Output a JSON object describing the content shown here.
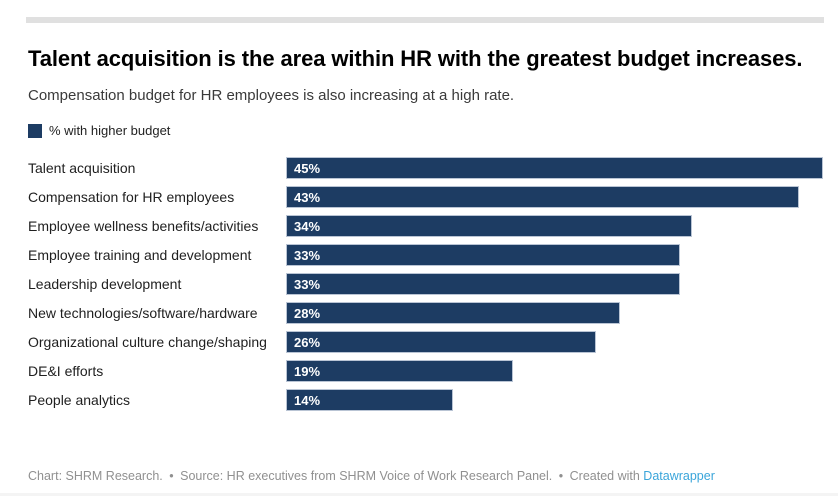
{
  "header": {
    "title": "Talent acquisition is the area within HR with the greatest budget increases.",
    "subtitle": "Compensation budget for HR employees is also increasing at a high rate."
  },
  "legend": {
    "label": "% with higher budget",
    "swatch_color": "#1d3c63"
  },
  "chart_data": {
    "type": "bar",
    "orientation": "horizontal",
    "title": "Talent acquisition is the area within HR with the greatest budget increases.",
    "subtitle": "Compensation budget for HR employees is also increasing at a high rate.",
    "series_name": "% with higher budget",
    "categories": [
      "Talent acquisition",
      "Compensation for HR employees",
      "Employee wellness benefits/activities",
      "Employee training and development",
      "Leadership development",
      "New technologies/software/hardware",
      "Organizational culture change/shaping",
      "DE&I efforts",
      "People analytics"
    ],
    "values": [
      45,
      43,
      34,
      33,
      33,
      28,
      26,
      19,
      14
    ],
    "value_suffix": "%",
    "xlim": [
      0,
      45
    ],
    "grid": false,
    "legend_position": "top-left",
    "bar_color": "#1d3c63",
    "value_label_color": "#ffffff"
  },
  "footer": {
    "chart_credit": "Chart: SHRM Research.",
    "separator": "•",
    "source": "Source: HR executives from SHRM Voice of Work Research Panel.",
    "created_with": "Created with",
    "link_label": "Datawrapper",
    "text_color": "#909090",
    "link_color": "#3aa5da"
  }
}
